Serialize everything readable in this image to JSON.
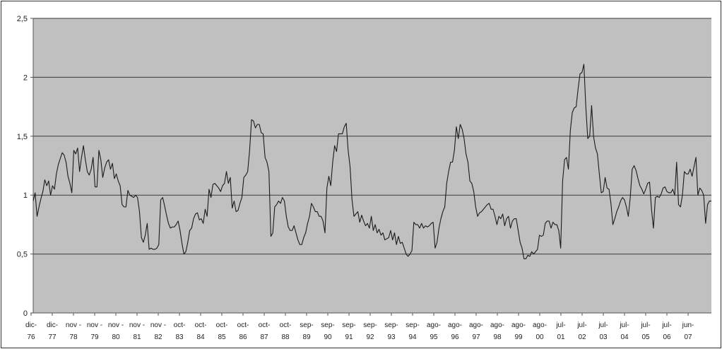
{
  "chart_data": {
    "type": "line",
    "title": "",
    "xlabel": "",
    "ylabel": "",
    "ylim": [
      0,
      2.5
    ],
    "yticks": [
      {
        "value": 0,
        "label": "0"
      },
      {
        "value": 0.5,
        "label": "0,5"
      },
      {
        "value": 1,
        "label": "1"
      },
      {
        "value": 1.5,
        "label": "1,5"
      },
      {
        "value": 2,
        "label": "2"
      },
      {
        "value": 2.5,
        "label": "2,5"
      }
    ],
    "grid": true,
    "legend": "none",
    "colors": {
      "plot_background": "#c0c0c0",
      "line": "#1a1a1a",
      "gridline": "#3a3a3a"
    },
    "x_tick_labels": [
      [
        "dic-",
        "76"
      ],
      [
        "dic-",
        "77"
      ],
      [
        "nov -",
        "78"
      ],
      [
        "nov -",
        "79"
      ],
      [
        "nov -",
        "80"
      ],
      [
        "nov -",
        "81"
      ],
      [
        "nov -",
        "82"
      ],
      [
        "oct-",
        "83"
      ],
      [
        "oct-",
        "84"
      ],
      [
        "oct-",
        "85"
      ],
      [
        "oct-",
        "86"
      ],
      [
        "oct-",
        "87"
      ],
      [
        "oct-",
        "88"
      ],
      [
        "sep-",
        "89"
      ],
      [
        "sep-",
        "90"
      ],
      [
        "sep-",
        "91"
      ],
      [
        "sep-",
        "92"
      ],
      [
        "sep-",
        "93"
      ],
      [
        "sep-",
        "94"
      ],
      [
        "ago-",
        "95"
      ],
      [
        "ago-",
        "96"
      ],
      [
        "ago-",
        "97"
      ],
      [
        "ago-",
        "98"
      ],
      [
        "ago-",
        "99"
      ],
      [
        "ago-",
        "00"
      ],
      [
        "jul-",
        "01"
      ],
      [
        "jul-",
        "02"
      ],
      [
        "jul-",
        "03"
      ],
      [
        "jul-",
        "04"
      ],
      [
        "jul-",
        "05"
      ],
      [
        "jul-",
        "06"
      ],
      [
        "jun-",
        "07"
      ]
    ],
    "series": [
      {
        "x_start": 1976.92,
        "x_step": 0.0833,
        "values": [
          0.95,
          1.02,
          0.82,
          0.9,
          0.97,
          1.03,
          1.13,
          1.08,
          1.12,
          1.0,
          1.08,
          1.05,
          1.18,
          1.26,
          1.31,
          1.36,
          1.34,
          1.28,
          1.16,
          1.1,
          1.02,
          1.38,
          1.35,
          1.4,
          1.2,
          1.32,
          1.42,
          1.3,
          1.2,
          1.17,
          1.22,
          1.32,
          1.07,
          1.07,
          1.38,
          1.3,
          1.15,
          1.23,
          1.28,
          1.3,
          1.22,
          1.27,
          1.14,
          1.18,
          1.12,
          1.08,
          0.92,
          0.9,
          0.9,
          1.04,
          1.0,
          0.99,
          0.98,
          1.0,
          0.98,
          0.86,
          0.64,
          0.6,
          0.66,
          0.76,
          0.54,
          0.55,
          0.54,
          0.54,
          0.55,
          0.58,
          0.96,
          0.98,
          0.91,
          0.83,
          0.76,
          0.72,
          0.73,
          0.73,
          0.75,
          0.78,
          0.7,
          0.59,
          0.5,
          0.52,
          0.6,
          0.7,
          0.72,
          0.8,
          0.84,
          0.85,
          0.79,
          0.8,
          0.76,
          0.88,
          0.82,
          1.05,
          0.98,
          1.09,
          1.1,
          1.08,
          1.06,
          1.03,
          1.08,
          1.1,
          1.2,
          1.1,
          1.15,
          0.89,
          0.95,
          0.86,
          0.87,
          0.93,
          0.98,
          1.15,
          1.17,
          1.2,
          1.38,
          1.64,
          1.63,
          1.57,
          1.6,
          1.6,
          1.53,
          1.52,
          1.32,
          1.28,
          1.2,
          0.65,
          0.68,
          0.9,
          0.92,
          0.95,
          0.93,
          0.98,
          0.95,
          0.82,
          0.73,
          0.7,
          0.7,
          0.74,
          0.68,
          0.62,
          0.58,
          0.58,
          0.64,
          0.68,
          0.76,
          0.82,
          0.93,
          0.9,
          0.86,
          0.86,
          0.82,
          0.82,
          0.78,
          0.68,
          1.06,
          1.16,
          1.08,
          1.28,
          1.42,
          1.37,
          1.52,
          1.52,
          1.52,
          1.58,
          1.61,
          1.38,
          1.24,
          0.96,
          0.82,
          0.84,
          0.86,
          0.77,
          0.83,
          0.78,
          0.74,
          0.76,
          0.72,
          0.82,
          0.7,
          0.75,
          0.68,
          0.71,
          0.66,
          0.68,
          0.62,
          0.63,
          0.64,
          0.7,
          0.62,
          0.68,
          0.58,
          0.65,
          0.59,
          0.6,
          0.55,
          0.5,
          0.48,
          0.5,
          0.53,
          0.77,
          0.75,
          0.75,
          0.72,
          0.76,
          0.72,
          0.74,
          0.73,
          0.74,
          0.76,
          0.77,
          0.55,
          0.6,
          0.72,
          0.8,
          0.86,
          0.9,
          1.1,
          1.2,
          1.28,
          1.28,
          1.38,
          1.58,
          1.48,
          1.6,
          1.56,
          1.48,
          1.35,
          1.28,
          1.12,
          1.1,
          1.03,
          0.9,
          0.82,
          0.85,
          0.86,
          0.88,
          0.9,
          0.92,
          0.93,
          0.88,
          0.88,
          0.82,
          0.75,
          0.82,
          0.8,
          0.84,
          0.74,
          0.8,
          0.82,
          0.72,
          0.78,
          0.8,
          0.8,
          0.7,
          0.6,
          0.55,
          0.46,
          0.46,
          0.49,
          0.48,
          0.52,
          0.5,
          0.52,
          0.54,
          0.66,
          0.65,
          0.66,
          0.76,
          0.78,
          0.78,
          0.72,
          0.77,
          0.75,
          0.75,
          0.7,
          0.55,
          1.12,
          1.3,
          1.32,
          1.22,
          1.55,
          1.7,
          1.74,
          1.75,
          1.9,
          2.03,
          2.04,
          2.11,
          1.75,
          1.48,
          1.5,
          1.76,
          1.5,
          1.4,
          1.35,
          1.18,
          1.02,
          1.03,
          1.15,
          1.06,
          1.05,
          0.93,
          0.75,
          0.8,
          0.86,
          0.9,
          0.95,
          0.98,
          0.96,
          0.9,
          0.82,
          0.98,
          1.22,
          1.25,
          1.21,
          1.14,
          1.08,
          1.05,
          1.01,
          1.05,
          1.1,
          1.11,
          0.88,
          0.72,
          0.98,
          0.99,
          0.98,
          1.01,
          1.06,
          1.07,
          1.03,
          1.02,
          1.02,
          1.05,
          1.0,
          1.28,
          0.92,
          0.9,
          1.0,
          1.2,
          1.18,
          1.18,
          1.22,
          1.16,
          1.24,
          1.32,
          1.0,
          1.06,
          1.04,
          1.0,
          0.76,
          0.92,
          0.95,
          0.95
        ]
      }
    ]
  }
}
